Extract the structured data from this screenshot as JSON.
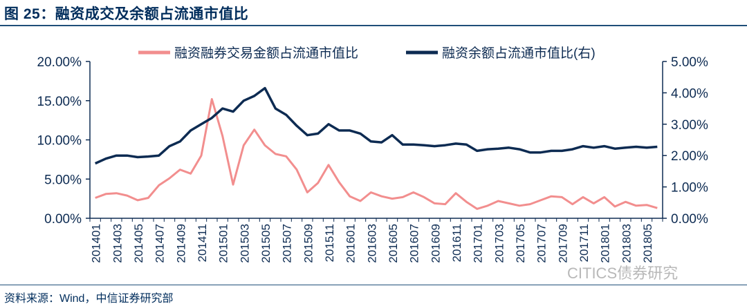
{
  "title": "图 25：融资成交及余额占流通市值比",
  "source": "资料来源：Wind，中信证券研究部",
  "watermark": "CITICS债券研究",
  "colors": {
    "series1": "#f28e8e",
    "series2": "#0d2b52",
    "axis": "#0d2b52",
    "title": "#002d5c"
  },
  "chart_data": {
    "type": "line",
    "legend_position": "top",
    "grid": false,
    "x_tick_labels": [
      "201401",
      "201403",
      "201405",
      "201407",
      "201409",
      "201411",
      "201501",
      "201503",
      "201505",
      "201507",
      "201509",
      "201511",
      "201601",
      "201603",
      "201605",
      "201607",
      "201609",
      "201611",
      "201701",
      "201703",
      "201705",
      "201707",
      "201709",
      "201711",
      "201801",
      "201803",
      "201805"
    ],
    "y_left": {
      "ylim": [
        0,
        20
      ],
      "ticks": [
        "0.00%",
        "5.00%",
        "10.00%",
        "15.00%",
        "20.00%"
      ]
    },
    "y_right": {
      "ylim": [
        0,
        5
      ],
      "ticks": [
        "0.00%",
        "1.00%",
        "2.00%",
        "3.00%",
        "4.00%",
        "5.00%"
      ]
    },
    "series": [
      {
        "name": "融资融券交易金额占流通市值比",
        "axis": "left",
        "values": [
          2.6,
          3.1,
          3.2,
          2.9,
          2.3,
          2.6,
          4.2,
          5.1,
          6.2,
          5.7,
          8.0,
          15.2,
          10.5,
          4.3,
          9.3,
          11.3,
          9.3,
          8.2,
          7.9,
          6.2,
          3.3,
          4.5,
          6.8,
          4.6,
          2.8,
          2.2,
          3.3,
          2.8,
          2.5,
          2.7,
          3.3,
          2.7,
          1.9,
          1.8,
          3.2,
          2.1,
          1.2,
          1.6,
          2.2,
          1.9,
          1.6,
          1.8,
          2.3,
          2.8,
          2.7,
          1.8,
          2.7,
          1.9,
          2.7,
          1.5,
          2.1,
          1.6,
          1.7,
          1.3
        ]
      },
      {
        "name": "融资余额占流通市值比(右)",
        "axis": "right",
        "values": [
          1.75,
          1.9,
          2.0,
          2.0,
          1.95,
          1.97,
          2.0,
          2.3,
          2.45,
          2.8,
          3.0,
          3.2,
          3.5,
          3.4,
          3.75,
          3.9,
          4.15,
          3.5,
          3.3,
          2.95,
          2.65,
          2.7,
          3.0,
          2.8,
          2.8,
          2.7,
          2.45,
          2.42,
          2.65,
          2.35,
          2.35,
          2.33,
          2.3,
          2.33,
          2.38,
          2.35,
          2.15,
          2.2,
          2.22,
          2.25,
          2.2,
          2.1,
          2.1,
          2.15,
          2.15,
          2.2,
          2.3,
          2.25,
          2.3,
          2.22,
          2.25,
          2.28,
          2.25,
          2.28
        ]
      }
    ]
  }
}
